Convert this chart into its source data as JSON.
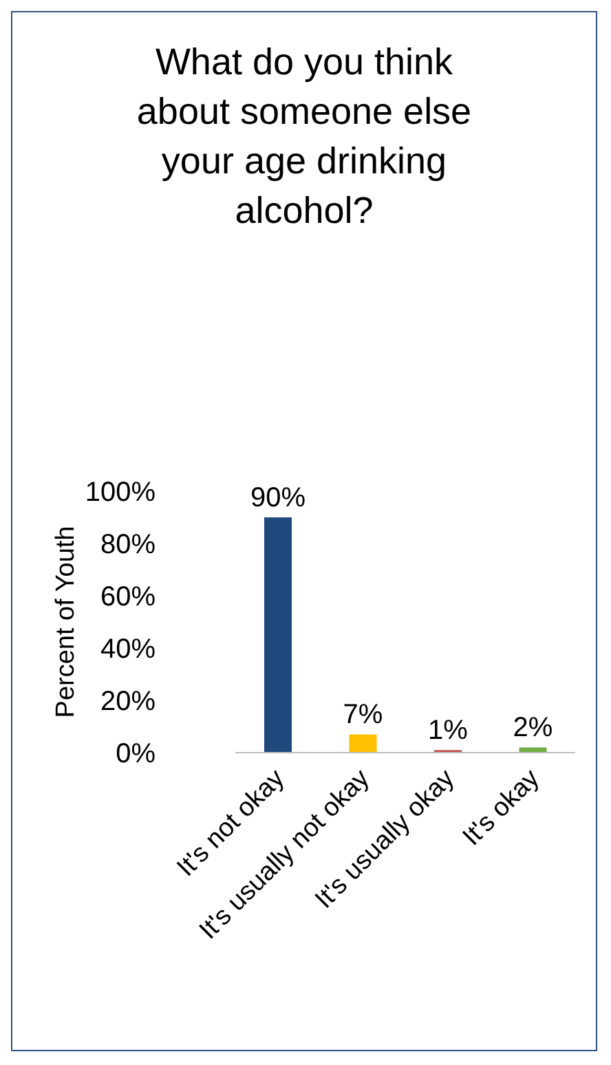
{
  "chart_data": {
    "type": "bar",
    "title": "What do you think about someone else your age drinking alcohol?",
    "ylabel": "Percent of Youth",
    "categories": [
      "It's not okay",
      "It's usually not okay",
      "It's usually okay",
      "It's okay"
    ],
    "values": [
      90,
      7,
      1,
      2
    ],
    "colors": [
      "#1f497d",
      "#ffc000",
      "#c0504d",
      "#70ad47"
    ],
    "value_labels": [
      "90%",
      "7%",
      "1%",
      "2%"
    ],
    "ylim": [
      0,
      100
    ],
    "yticks": [
      {
        "value": 0,
        "label": "0%"
      },
      {
        "value": 20,
        "label": "20%"
      },
      {
        "value": 40,
        "label": "40%"
      },
      {
        "value": 60,
        "label": "60%"
      },
      {
        "value": 80,
        "label": "80%"
      },
      {
        "value": 100,
        "label": "100%"
      }
    ],
    "grid": false,
    "legend": false
  }
}
